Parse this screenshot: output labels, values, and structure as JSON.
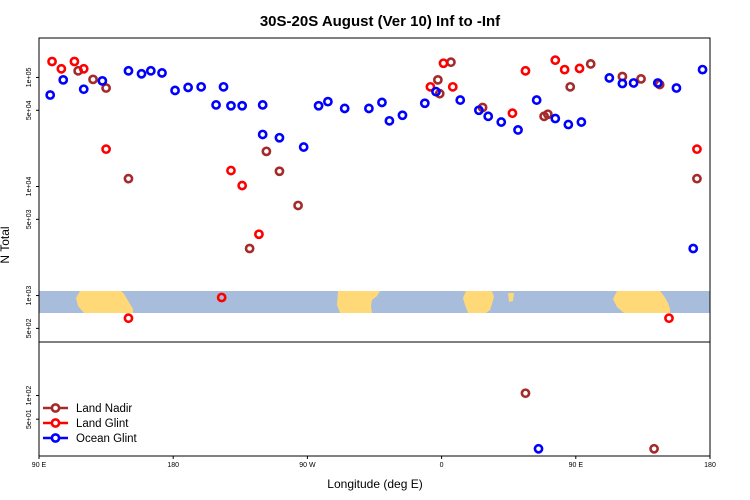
{
  "chart_data": {
    "type": "scatter",
    "title": "30S-20S August (Ver 10)   Inf to -Inf",
    "xlabel": "Longitude (deg E)",
    "ylabel": "N Total",
    "xlim": [
      90,
      450
    ],
    "x_ticks": [
      {
        "x": 90,
        "label": "90 E"
      },
      {
        "x": 162,
        "label": "180"
      },
      {
        "x": 234,
        "label": "90 W"
      },
      {
        "x": 306,
        "label": "0"
      },
      {
        "x": 378,
        "label": "90 E"
      },
      {
        "x": 450,
        "label": "180"
      }
    ],
    "top_panel": {
      "scale": "log",
      "ylim": [
        375,
        230000
      ],
      "y_ticks": [
        {
          "y": 500,
          "label": "5e+02"
        },
        {
          "y": 1000,
          "label": "1e+03"
        },
        {
          "y": 5000,
          "label": "5e+03"
        },
        {
          "y": 10000,
          "label": "1e+04"
        },
        {
          "y": 50000,
          "label": "5e+04"
        },
        {
          "y": 100000,
          "label": "1e+05"
        }
      ],
      "series": [
        {
          "name": "Land Nadir",
          "color": "#a52a2a",
          "points": [
            [
              111,
              115000
            ],
            [
              119,
              96000
            ],
            [
              126,
              80000
            ],
            [
              138,
              11800
            ],
            [
              203,
              2700
            ],
            [
              212,
              21000
            ],
            [
              219,
              13800
            ],
            [
              229,
              6700
            ],
            [
              305,
              71000
            ],
            [
              304,
              95000
            ],
            [
              311,
              138000
            ],
            [
              328,
              53000
            ],
            [
              361,
              44000
            ],
            [
              363,
              46000
            ],
            [
              375,
              82000
            ],
            [
              386,
              133000
            ],
            [
              403,
              102000
            ],
            [
              413,
              97000
            ],
            [
              423,
              86000
            ],
            [
              443,
              11800
            ]
          ]
        },
        {
          "name": "Land Glint",
          "color": "#ff0000",
          "points": [
            [
              97,
              140000
            ],
            [
              102,
              120000
            ],
            [
              109,
              140000
            ],
            [
              114,
              120000
            ],
            [
              126,
              22000
            ],
            [
              138,
              620
            ],
            [
              188,
              960
            ],
            [
              193,
              14000
            ],
            [
              199,
              10200
            ],
            [
              208,
              3650
            ],
            [
              300,
              82000
            ],
            [
              307,
              135000
            ],
            [
              312,
              82000
            ],
            [
              344,
              47000
            ],
            [
              351,
              115000
            ],
            [
              367,
              144000
            ],
            [
              372,
              118000
            ],
            [
              380,
              121000
            ],
            [
              428,
              620
            ],
            [
              443,
              22000
            ]
          ]
        },
        {
          "name": "Ocean Glint",
          "color": "#0000ff",
          "points": [
            [
              96,
              69000
            ],
            [
              103,
              95000
            ],
            [
              114,
              78000
            ],
            [
              124,
              93000
            ],
            [
              138,
              115000
            ],
            [
              145,
              108000
            ],
            [
              150,
              115000
            ],
            [
              156,
              110000
            ],
            [
              163,
              76000
            ],
            [
              170,
              81000
            ],
            [
              177,
              82000
            ],
            [
              185,
              56000
            ],
            [
              189,
              82000
            ],
            [
              193,
              55000
            ],
            [
              199,
              55000
            ],
            [
              210,
              56000
            ],
            [
              210,
              30000
            ],
            [
              219,
              28000
            ],
            [
              232,
              23000
            ],
            [
              240,
              55000
            ],
            [
              245,
              60000
            ],
            [
              254,
              52000
            ],
            [
              267,
              52000
            ],
            [
              274,
              59000
            ],
            [
              278,
              40000
            ],
            [
              285,
              45000
            ],
            [
              297,
              58000
            ],
            [
              303,
              74000
            ],
            [
              316,
              62000
            ],
            [
              326,
              50000
            ],
            [
              331,
              44000
            ],
            [
              338,
              39000
            ],
            [
              347,
              33000
            ],
            [
              357,
              62000
            ],
            [
              367,
              42000
            ],
            [
              374,
              37000
            ],
            [
              381,
              39000
            ],
            [
              396,
              99000
            ],
            [
              403,
              88000
            ],
            [
              409,
              89000
            ],
            [
              422,
              89000
            ],
            [
              432,
              80000
            ],
            [
              441,
              2700
            ],
            [
              446,
              118000
            ]
          ]
        }
      ]
    },
    "bottom_panel": {
      "scale": "log",
      "ylim": [
        17,
        480
      ],
      "y_ticks": [
        {
          "y": 50,
          "label": "5e+01"
        },
        {
          "y": 100,
          "label": "1e+02"
        }
      ],
      "series": [
        {
          "name": "Land Nadir",
          "color": "#a52a2a",
          "points": [
            [
              351,
              107
            ],
            [
              420,
              21
            ]
          ]
        },
        {
          "name": "Ocean Glint",
          "color": "#0000ff",
          "points": [
            [
              358,
              21
            ]
          ]
        }
      ]
    },
    "legend": {
      "placement": "bottom-left",
      "entries": [
        {
          "name": "Land Nadir",
          "color": "#a52a2a"
        },
        {
          "name": "Land Glint",
          "color": "#ff0000"
        },
        {
          "name": "Ocean Glint",
          "color": "#0000ff"
        }
      ]
    },
    "map_strip": {
      "ocean_color": "#a8bcdc",
      "land_color": "#ffd978"
    }
  }
}
